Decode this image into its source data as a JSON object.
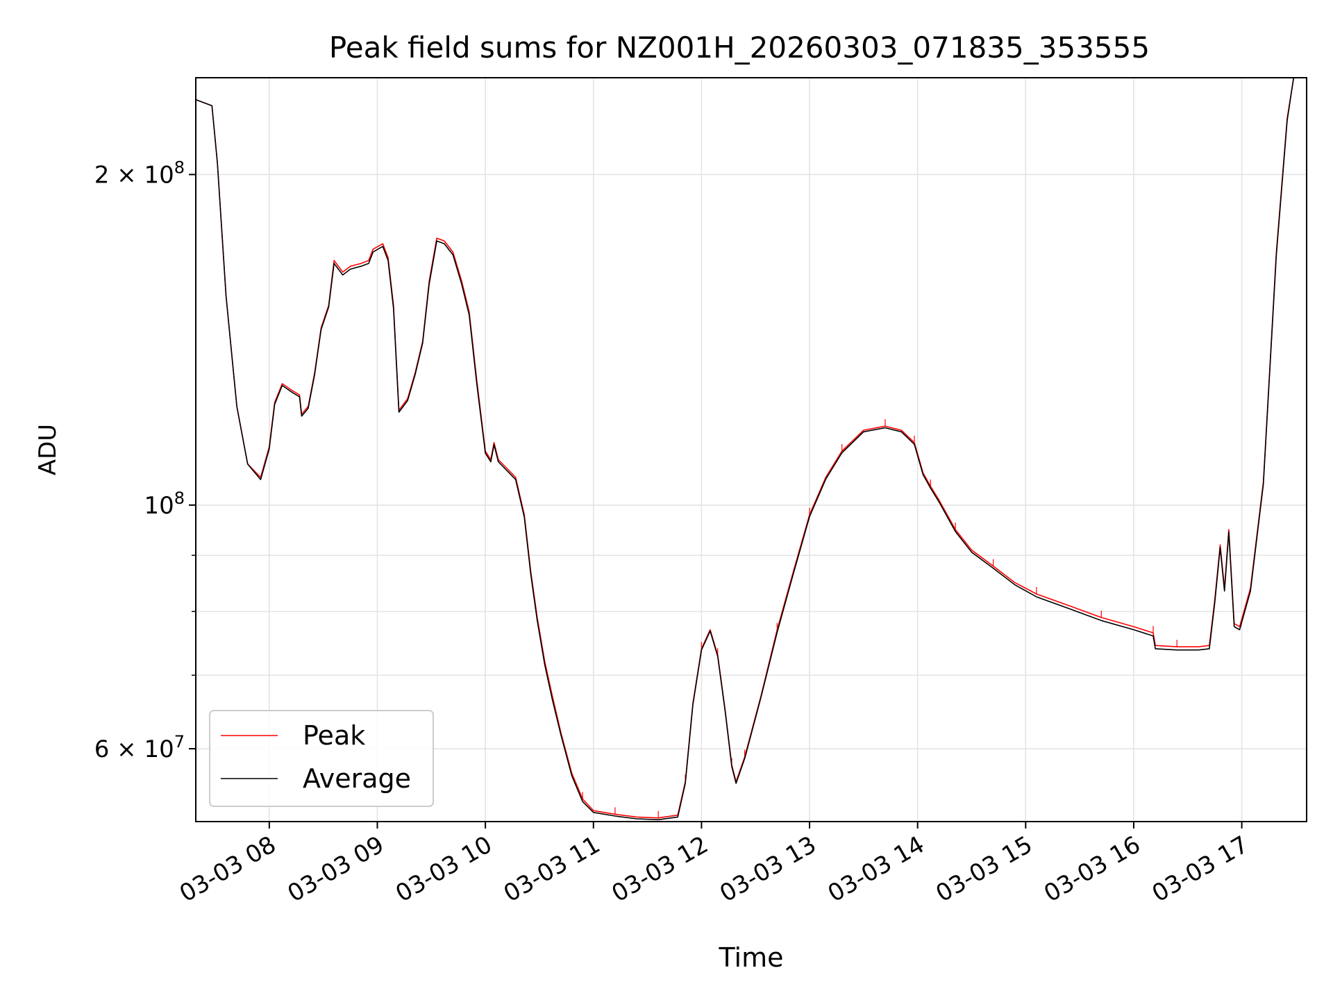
{
  "chart_data": {
    "type": "line",
    "title": "Peak field sums for NZ001H_20260303_071835_353555",
    "xlabel": "Time",
    "ylabel": "ADU",
    "yscale": "log",
    "ylim": [
      51500000,
      245000000
    ],
    "xlim_hours": [
      7.32,
      17.6
    ],
    "grid": true,
    "legend_position": "lower-left",
    "x_ticks": [
      {
        "hour": 8,
        "label": "03-03 08"
      },
      {
        "hour": 9,
        "label": "03-03 09"
      },
      {
        "hour": 10,
        "label": "03-03 10"
      },
      {
        "hour": 11,
        "label": "03-03 11"
      },
      {
        "hour": 12,
        "label": "03-03 12"
      },
      {
        "hour": 13,
        "label": "03-03 13"
      },
      {
        "hour": 14,
        "label": "03-03 14"
      },
      {
        "hour": 15,
        "label": "03-03 15"
      },
      {
        "hour": 16,
        "label": "03-03 16"
      },
      {
        "hour": 17,
        "label": "03-03 17"
      }
    ],
    "y_major_ticks": [
      {
        "value": 60000000,
        "mantissa": "6",
        "exponent": "7"
      },
      {
        "value": 100000000,
        "mantissa": "",
        "exponent": "8"
      },
      {
        "value": 200000000,
        "mantissa": "2",
        "exponent": "8"
      }
    ],
    "y_minor_ticks": [
      70000000,
      80000000,
      90000000
    ],
    "series": [
      {
        "name": "Peak",
        "color": "#ff0000",
        "points": [
          [
            7.32,
            234000000
          ],
          [
            7.47,
            231000000
          ],
          [
            7.52,
            205000000
          ],
          [
            7.6,
            155000000
          ],
          [
            7.7,
            123000000
          ],
          [
            7.8,
            109000000
          ],
          [
            7.92,
            106000000
          ],
          [
            8.0,
            113000000
          ],
          [
            8.05,
            124000000
          ],
          [
            8.12,
            129000000
          ],
          [
            8.22,
            127000000
          ],
          [
            8.28,
            126000000
          ],
          [
            8.3,
            121000000
          ],
          [
            8.36,
            123000000
          ],
          [
            8.42,
            132000000
          ],
          [
            8.48,
            145000000
          ],
          [
            8.55,
            152000000
          ],
          [
            8.6,
            167000000
          ],
          [
            8.68,
            163000000
          ],
          [
            8.75,
            165000000
          ],
          [
            8.85,
            166000000
          ],
          [
            8.92,
            167000000
          ],
          [
            8.96,
            171000000
          ],
          [
            9.05,
            173000000
          ],
          [
            9.1,
            168000000
          ],
          [
            9.15,
            152000000
          ],
          [
            9.2,
            122000000
          ],
          [
            9.28,
            125000000
          ],
          [
            9.35,
            132000000
          ],
          [
            9.42,
            141000000
          ],
          [
            9.48,
            160000000
          ],
          [
            9.55,
            175000000
          ],
          [
            9.62,
            174000000
          ],
          [
            9.7,
            170000000
          ],
          [
            9.78,
            160000000
          ],
          [
            9.85,
            150000000
          ],
          [
            9.92,
            130000000
          ],
          [
            10.0,
            112000000
          ],
          [
            10.05,
            110000000
          ],
          [
            10.08,
            114000000
          ],
          [
            10.12,
            110000000
          ],
          [
            10.2,
            108000000
          ],
          [
            10.28,
            106000000
          ],
          [
            10.36,
            98000000
          ],
          [
            10.42,
            87000000
          ],
          [
            10.48,
            79000000
          ],
          [
            10.55,
            72000000
          ],
          [
            10.62,
            67000000
          ],
          [
            10.7,
            62000000
          ],
          [
            10.8,
            57000000
          ],
          [
            10.9,
            54000000
          ],
          [
            11.0,
            52700000
          ],
          [
            11.2,
            52300000
          ],
          [
            11.4,
            52000000
          ],
          [
            11.6,
            51900000
          ],
          [
            11.78,
            52200000
          ],
          [
            11.85,
            56000000
          ],
          [
            11.92,
            66000000
          ],
          [
            12.0,
            74000000
          ],
          [
            12.08,
            77000000
          ],
          [
            12.15,
            73000000
          ],
          [
            12.22,
            65000000
          ],
          [
            12.28,
            58000000
          ],
          [
            12.32,
            56000000
          ],
          [
            12.4,
            59000000
          ],
          [
            12.55,
            67000000
          ],
          [
            12.7,
            77000000
          ],
          [
            12.85,
            87000000
          ],
          [
            13.0,
            98000000
          ],
          [
            13.15,
            106000000
          ],
          [
            13.3,
            112000000
          ],
          [
            13.5,
            117000000
          ],
          [
            13.7,
            118000000
          ],
          [
            13.85,
            117000000
          ],
          [
            13.97,
            114000000
          ],
          [
            14.05,
            107000000
          ],
          [
            14.12,
            104000000
          ],
          [
            14.2,
            101000000
          ],
          [
            14.35,
            95000000
          ],
          [
            14.5,
            91000000
          ],
          [
            14.7,
            88000000
          ],
          [
            14.9,
            85000000
          ],
          [
            15.1,
            83000000
          ],
          [
            15.4,
            81000000
          ],
          [
            15.7,
            79000000
          ],
          [
            16.0,
            77500000
          ],
          [
            16.18,
            76500000
          ],
          [
            16.2,
            74500000
          ],
          [
            16.4,
            74300000
          ],
          [
            16.6,
            74300000
          ],
          [
            16.7,
            74500000
          ],
          [
            16.75,
            82000000
          ],
          [
            16.8,
            92000000
          ],
          [
            16.84,
            84000000
          ],
          [
            16.88,
            95000000
          ],
          [
            16.93,
            78000000
          ],
          [
            16.98,
            77500000
          ],
          [
            17.08,
            84000000
          ],
          [
            17.2,
            105000000
          ],
          [
            17.32,
            170000000
          ],
          [
            17.42,
            225000000
          ],
          [
            17.48,
            245000000
          ],
          [
            17.6,
            245000000
          ]
        ]
      },
      {
        "name": "Average",
        "color": "#000000",
        "points": [
          [
            7.32,
            234000000
          ],
          [
            7.47,
            231000000
          ],
          [
            7.52,
            205000000
          ],
          [
            7.6,
            155000000
          ],
          [
            7.7,
            123000000
          ],
          [
            7.8,
            109000000
          ],
          [
            7.92,
            105500000
          ],
          [
            8.0,
            112500000
          ],
          [
            8.05,
            123500000
          ],
          [
            8.12,
            128500000
          ],
          [
            8.22,
            126500000
          ],
          [
            8.28,
            125500000
          ],
          [
            8.3,
            120500000
          ],
          [
            8.36,
            122500000
          ],
          [
            8.42,
            131500000
          ],
          [
            8.48,
            144500000
          ],
          [
            8.55,
            151500000
          ],
          [
            8.6,
            166000000
          ],
          [
            8.68,
            162000000
          ],
          [
            8.75,
            164000000
          ],
          [
            8.85,
            165000000
          ],
          [
            8.92,
            166000000
          ],
          [
            8.96,
            170000000
          ],
          [
            9.05,
            172000000
          ],
          [
            9.1,
            167000000
          ],
          [
            9.15,
            151000000
          ],
          [
            9.2,
            121500000
          ],
          [
            9.28,
            124500000
          ],
          [
            9.35,
            131500000
          ],
          [
            9.42,
            140500000
          ],
          [
            9.48,
            159000000
          ],
          [
            9.55,
            174000000
          ],
          [
            9.62,
            173000000
          ],
          [
            9.7,
            169000000
          ],
          [
            9.78,
            159000000
          ],
          [
            9.85,
            149000000
          ],
          [
            9.92,
            129000000
          ],
          [
            10.0,
            111500000
          ],
          [
            10.05,
            109500000
          ],
          [
            10.08,
            113500000
          ],
          [
            10.12,
            109500000
          ],
          [
            10.2,
            107500000
          ],
          [
            10.28,
            105500000
          ],
          [
            10.36,
            97500000
          ],
          [
            10.42,
            86500000
          ],
          [
            10.48,
            78500000
          ],
          [
            10.55,
            71500000
          ],
          [
            10.62,
            66500000
          ],
          [
            10.7,
            61700000
          ],
          [
            10.8,
            56700000
          ],
          [
            10.9,
            53700000
          ],
          [
            11.0,
            52500000
          ],
          [
            11.2,
            52100000
          ],
          [
            11.4,
            51800000
          ],
          [
            11.6,
            51700000
          ],
          [
            11.78,
            52000000
          ],
          [
            11.85,
            55800000
          ],
          [
            11.92,
            65800000
          ],
          [
            12.0,
            73800000
          ],
          [
            12.08,
            76800000
          ],
          [
            12.15,
            72800000
          ],
          [
            12.22,
            64800000
          ],
          [
            12.28,
            57800000
          ],
          [
            12.32,
            55800000
          ],
          [
            12.4,
            58800000
          ],
          [
            12.55,
            66800000
          ],
          [
            12.7,
            76600000
          ],
          [
            12.85,
            86600000
          ],
          [
            13.0,
            97600000
          ],
          [
            13.15,
            105600000
          ],
          [
            13.3,
            111600000
          ],
          [
            13.5,
            116600000
          ],
          [
            13.7,
            117600000
          ],
          [
            13.85,
            116600000
          ],
          [
            13.97,
            113600000
          ],
          [
            14.05,
            106600000
          ],
          [
            14.12,
            103600000
          ],
          [
            14.2,
            100600000
          ],
          [
            14.35,
            94600000
          ],
          [
            14.5,
            90600000
          ],
          [
            14.7,
            87600000
          ],
          [
            14.9,
            84600000
          ],
          [
            15.1,
            82500000
          ],
          [
            15.4,
            80500000
          ],
          [
            15.7,
            78500000
          ],
          [
            16.0,
            77000000
          ],
          [
            16.18,
            76000000
          ],
          [
            16.2,
            74000000
          ],
          [
            16.4,
            73800000
          ],
          [
            16.6,
            73800000
          ],
          [
            16.7,
            74000000
          ],
          [
            16.75,
            81500000
          ],
          [
            16.8,
            91500000
          ],
          [
            16.84,
            83500000
          ],
          [
            16.88,
            94500000
          ],
          [
            16.93,
            77500000
          ],
          [
            16.98,
            77000000
          ],
          [
            17.08,
            83500000
          ],
          [
            17.2,
            104500000
          ],
          [
            17.32,
            169000000
          ],
          [
            17.42,
            224000000
          ],
          [
            17.48,
            245000000
          ],
          [
            17.6,
            245000000
          ]
        ]
      }
    ]
  }
}
